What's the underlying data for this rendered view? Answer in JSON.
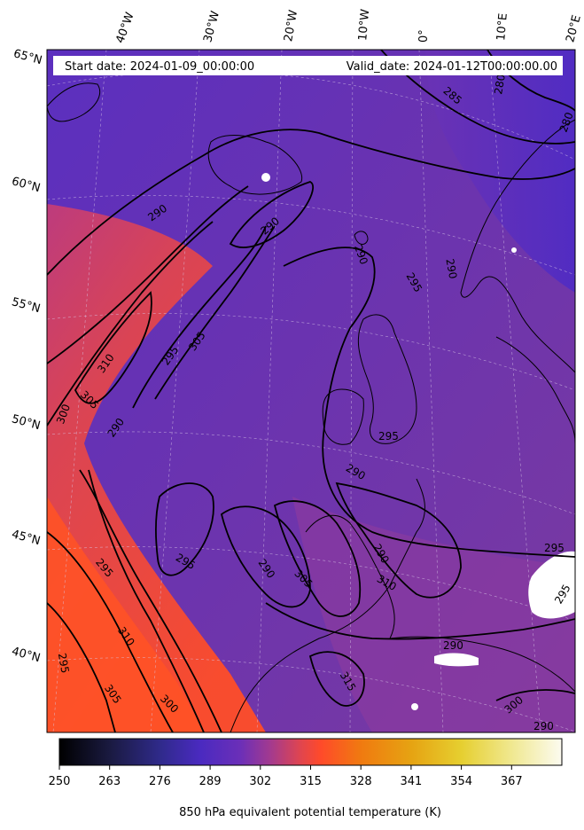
{
  "header": {
    "start_date": "Start date: 2024-01-09_00:00:00",
    "valid_date": "Valid_date: 2024-01-12T00:00:00.00"
  },
  "map": {
    "longitude_labels": [
      "40°W",
      "30°W",
      "20°W",
      "10°W",
      "0°",
      "10°E",
      "20°E"
    ],
    "latitude_labels": [
      "65°N",
      "60°N",
      "55°N",
      "50°N",
      "45°N",
      "40°N"
    ],
    "contour_labels": [
      "280",
      "285",
      "280",
      "290",
      "290",
      "290",
      "295",
      "290",
      "295",
      "310",
      "305",
      "305",
      "300",
      "290",
      "295",
      "290",
      "295",
      "290",
      "305",
      "290",
      "295",
      "310",
      "310",
      "295",
      "290",
      "315",
      "305",
      "300",
      "300",
      "290",
      "295",
      "295"
    ],
    "colormap": "CMRmap",
    "land_color": "#5b2bbd",
    "ocean_warm_color": "#ff4a2a",
    "missing_data_color": "#ffffff"
  },
  "colorbar": {
    "ticks": [
      "250",
      "263",
      "276",
      "289",
      "302",
      "315",
      "328",
      "341",
      "354",
      "367"
    ],
    "range": [
      250,
      380
    ],
    "label": "850 hPa equivalent potential temperature (K)",
    "colors": [
      "#000000",
      "#1a1a40",
      "#2f2a8a",
      "#4a2ac0",
      "#6b2fb8",
      "#a33a8f",
      "#e0454f",
      "#ff4a2a",
      "#f07a10",
      "#e6a312",
      "#e6cf30",
      "#f0e890",
      "#fcfbf0"
    ]
  }
}
